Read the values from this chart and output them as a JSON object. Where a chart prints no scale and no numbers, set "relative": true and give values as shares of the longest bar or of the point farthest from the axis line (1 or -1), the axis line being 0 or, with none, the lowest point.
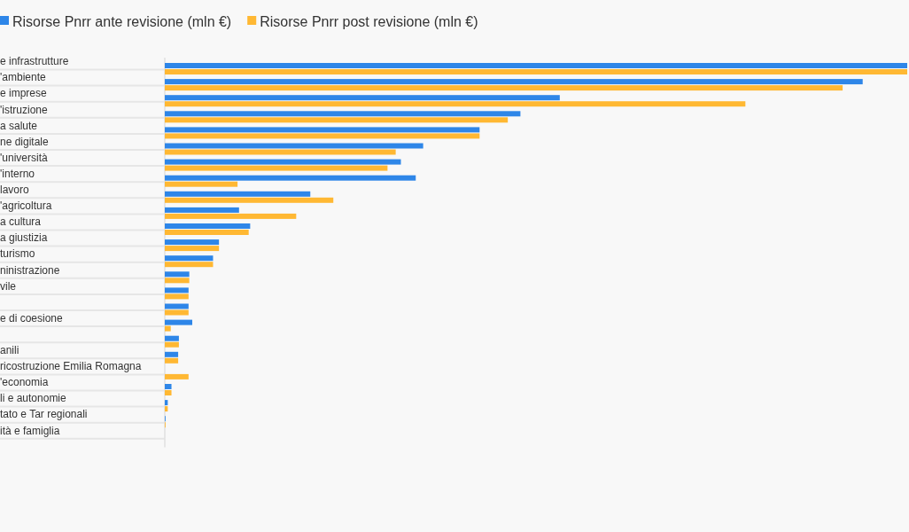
{
  "chart_data": {
    "type": "bar",
    "orientation": "horizontal",
    "relative": true,
    "legend": "top left",
    "categories": [
      "e infrastrutture",
      "'ambiente",
      "e imprese",
      "'istruzione",
      "a salute",
      "ne digitale",
      "'università",
      "'interno",
      "lavoro",
      "'agricoltura",
      "a cultura",
      "a giustizia",
      "turismo",
      "ninistrazione",
      "vile",
      null,
      "e di coesione",
      null,
      "anili",
      "ricostruzione Emilia Romagna",
      "'economia",
      "li e autonomie",
      "tato e Tar regionali",
      "ità e famiglia"
    ],
    "series": [
      {
        "name": "Risorse Pnrr ante revisione (mln €)",
        "color": "#2e86e8",
        "values": [
          1,
          0.94,
          0.532,
          0.479,
          0.424,
          0.348,
          0.318,
          0.338,
          0.196,
          0.1,
          0.115,
          0.073,
          0.065,
          0.033,
          0.032,
          0.032,
          0.037,
          0.019,
          0.018,
          0,
          0.009,
          0.004,
          0.001,
          0
        ]
      },
      {
        "name": "Risorse Pnrr post revisione (mln €)",
        "color": "#ffb833",
        "values": [
          1,
          0.913,
          0.782,
          0.462,
          0.424,
          0.311,
          0.3,
          0.098,
          0.227,
          0.177,
          0.113,
          0.073,
          0.065,
          0.033,
          0.032,
          0.032,
          0.008,
          0.019,
          0.018,
          0.032,
          0.009,
          0.004,
          0.001,
          0
        ]
      }
    ]
  }
}
